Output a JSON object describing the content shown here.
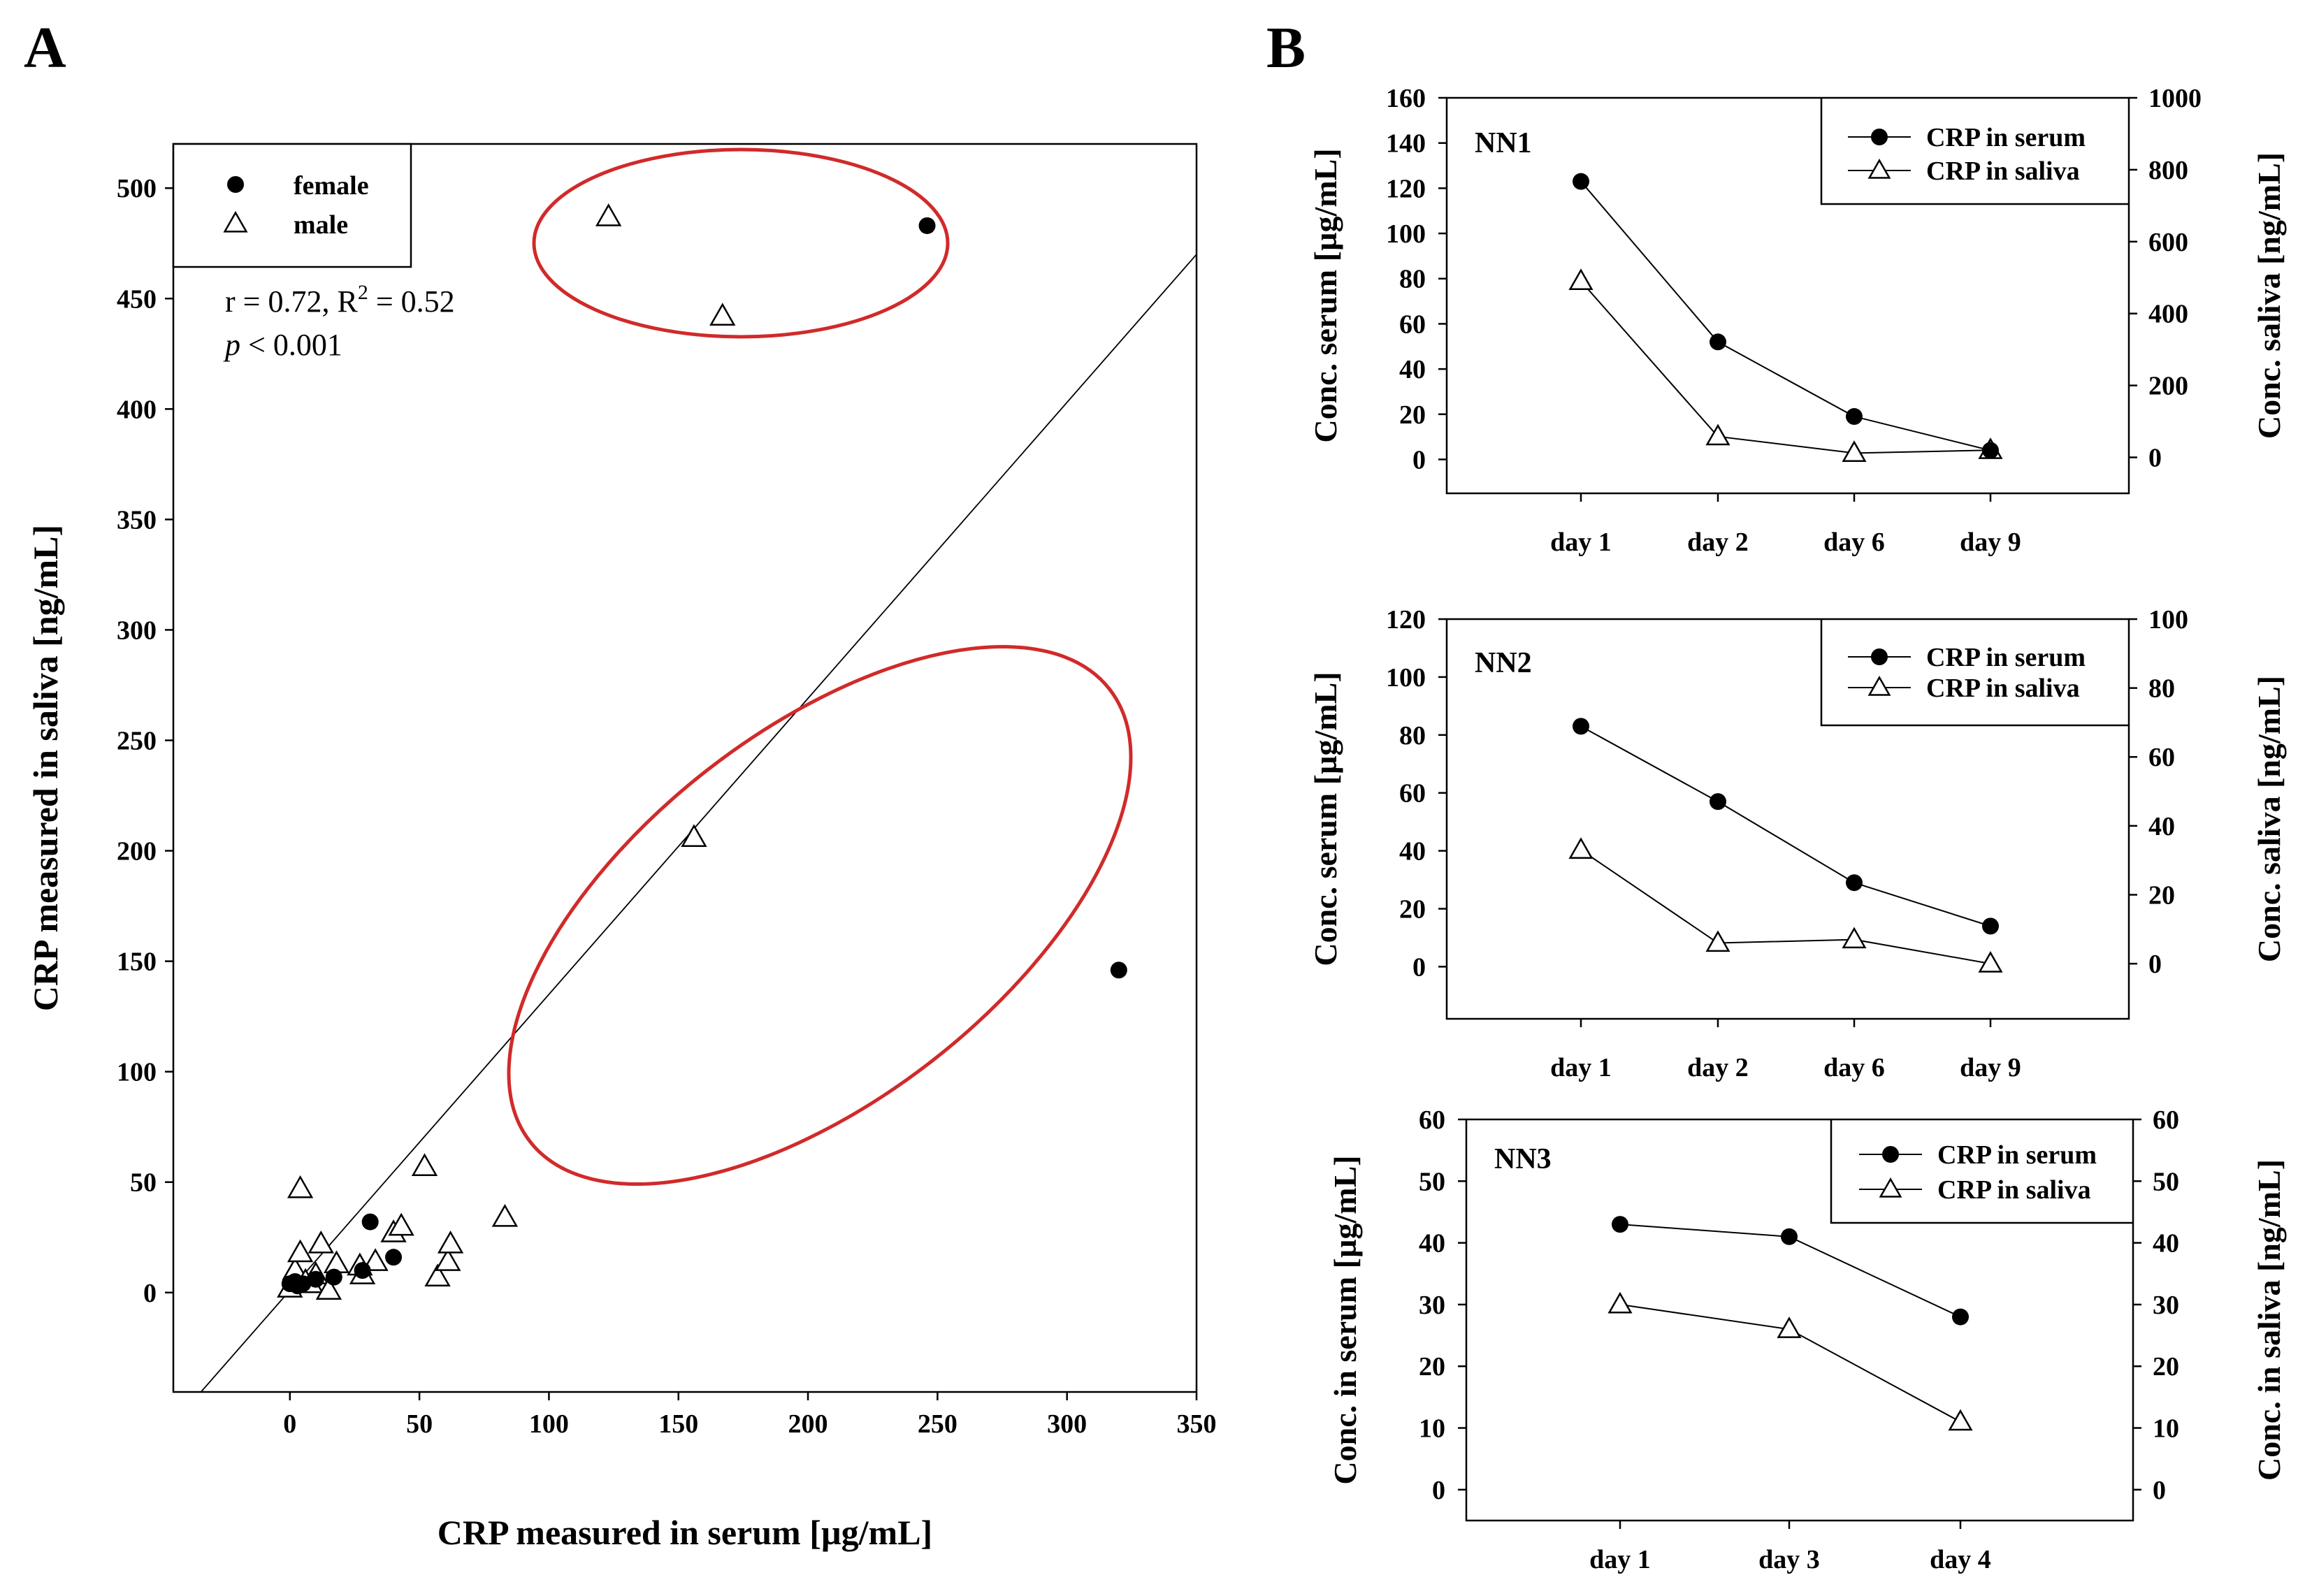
{
  "chart_data": [
    {
      "panel": "A",
      "type": "scatter",
      "xlabel": "CRP measured in serum [µg/mL]",
      "ylabel": "CRP measured in saliva [ng/mL]",
      "xlim": [
        -45,
        350
      ],
      "ylim": [
        -45,
        520
      ],
      "xticks": [
        0,
        50,
        100,
        150,
        200,
        250,
        300,
        350
      ],
      "yticks": [
        0,
        50,
        100,
        150,
        200,
        250,
        300,
        350,
        400,
        450,
        500
      ],
      "legend": [
        "female",
        "male"
      ],
      "stats": {
        "line1": "r = 0.72, R",
        "sup": "2",
        "line1b": " = 0.52",
        "p": "p",
        "pval": " < 0.001"
      },
      "regression": {
        "slope": 1.34,
        "intercept": 1.0
      },
      "series": [
        {
          "name": "female",
          "marker": "filled-circle",
          "points": [
            [
              0,
              4
            ],
            [
              2,
              5
            ],
            [
              3,
              3
            ],
            [
              5,
              4
            ],
            [
              10,
              6
            ],
            [
              17,
              7
            ],
            [
              28,
              10
            ],
            [
              31,
              32
            ],
            [
              40,
              16
            ],
            [
              246,
              483
            ],
            [
              320,
              146
            ]
          ]
        },
        {
          "name": "male",
          "marker": "open-triangle",
          "points": [
            [
              0,
              2
            ],
            [
              2,
              10
            ],
            [
              4,
              18
            ],
            [
              4,
              47
            ],
            [
              6,
              5
            ],
            [
              8,
              4
            ],
            [
              10,
              8
            ],
            [
              12,
              22
            ],
            [
              15,
              1
            ],
            [
              18,
              13
            ],
            [
              27,
              12
            ],
            [
              28,
              8
            ],
            [
              33,
              14
            ],
            [
              40,
              27
            ],
            [
              43,
              30
            ],
            [
              52,
              57
            ],
            [
              57,
              7
            ],
            [
              61,
              14
            ],
            [
              62,
              22
            ],
            [
              83,
              34
            ],
            [
              123,
              487
            ],
            [
              156,
              206
            ],
            [
              167,
              442
            ]
          ]
        }
      ],
      "highlight_ellipses": 2
    },
    {
      "panel": "B",
      "subplot": "NN1",
      "type": "line",
      "categories": [
        "day 1",
        "day 2",
        "day 6",
        "day 9"
      ],
      "ylabel_left": "Conc. serum [µg/mL]",
      "ylabel_right": "Conc. saliva [ng/mL]",
      "left_lim": [
        -15,
        160
      ],
      "left_ticks": [
        0,
        20,
        40,
        60,
        80,
        100,
        120,
        140,
        160
      ],
      "right_lim": [
        -100,
        1000
      ],
      "right_ticks": [
        0,
        200,
        400,
        600,
        800,
        1000
      ],
      "series": [
        {
          "name": "CRP in serum",
          "axis": "left",
          "marker": "filled-circle",
          "values": [
            123,
            52,
            19,
            4
          ]
        },
        {
          "name": "CRP in saliva",
          "axis": "right",
          "marker": "open-triangle",
          "values": [
            490,
            58,
            12,
            20
          ]
        }
      ]
    },
    {
      "panel": "B",
      "subplot": "NN2",
      "type": "line",
      "categories": [
        "day 1",
        "day 2",
        "day 6",
        "day 9"
      ],
      "ylabel_left": "Conc. serum [µg/mL]",
      "ylabel_right": "Conc. saliva [ng/mL]",
      "left_lim": [
        -18,
        120
      ],
      "left_ticks": [
        0,
        20,
        40,
        60,
        80,
        100,
        120
      ],
      "right_lim": [
        -16,
        100
      ],
      "right_ticks": [
        0,
        20,
        40,
        60,
        80,
        100
      ],
      "series": [
        {
          "name": "CRP in serum",
          "axis": "left",
          "marker": "filled-circle",
          "values": [
            83,
            57,
            29,
            14
          ]
        },
        {
          "name": "CRP in saliva",
          "axis": "right",
          "marker": "open-triangle",
          "values": [
            33,
            6,
            7,
            0
          ]
        }
      ]
    },
    {
      "panel": "B",
      "subplot": "NN3",
      "type": "line",
      "categories": [
        "day 1",
        "day 3",
        "day 4"
      ],
      "ylabel_left": "Conc. in serum [µg/mL]",
      "ylabel_right": "Conc. in saliva [ng/mL]",
      "left_lim": [
        -5,
        60
      ],
      "left_ticks": [
        0,
        10,
        20,
        30,
        40,
        50,
        60
      ],
      "right_lim": [
        -5,
        60
      ],
      "right_ticks": [
        0,
        10,
        20,
        30,
        40,
        50,
        60
      ],
      "series": [
        {
          "name": "CRP in serum",
          "axis": "left",
          "marker": "filled-circle",
          "values": [
            43,
            41,
            28
          ]
        },
        {
          "name": "CRP in saliva",
          "axis": "right",
          "marker": "open-triangle",
          "values": [
            30,
            26,
            11
          ]
        }
      ]
    }
  ]
}
